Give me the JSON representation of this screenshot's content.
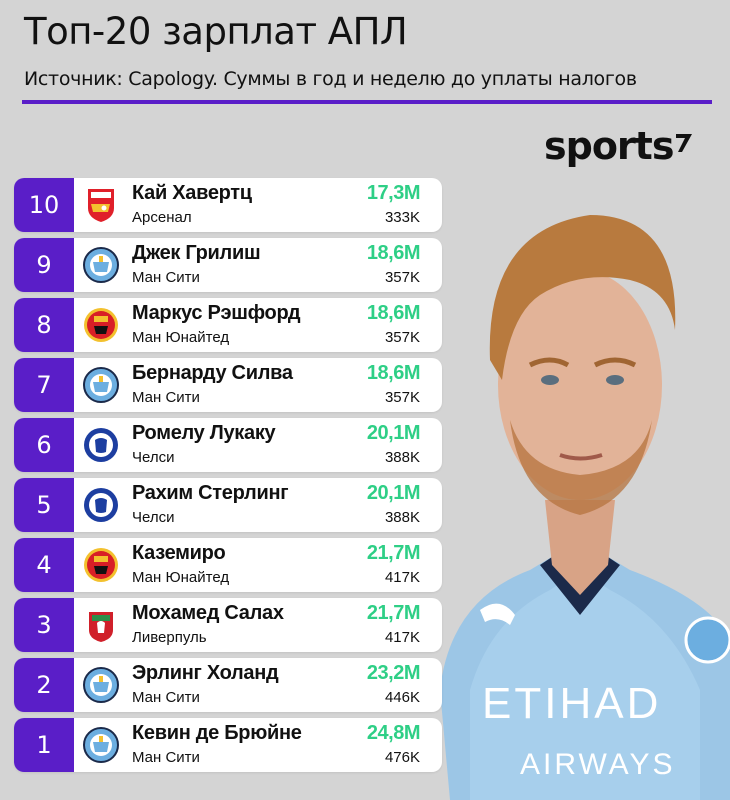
{
  "header": {
    "title": "Топ-20 зарплат АПЛ",
    "subtitle": "Источник: Capology. Суммы в год и неделю до уплаты налогов",
    "brand": "sports"
  },
  "colors": {
    "accent": "#5a1ec8",
    "salary_green": "#2ecf86",
    "background": "#d4d4d4"
  },
  "rows": [
    {
      "rank": "10",
      "name": "Кай Хавертц",
      "club": "Арсенал",
      "year": "17,3M",
      "week": "333K",
      "crest": "arsenal-crest-icon"
    },
    {
      "rank": "9",
      "name": "Джек Грилиш",
      "club": "Ман Сити",
      "year": "18,6M",
      "week": "357K",
      "crest": "man-city-crest-icon"
    },
    {
      "rank": "8",
      "name": "Маркус Рэшфорд",
      "club": "Ман Юнайтед",
      "year": "18,6M",
      "week": "357K",
      "crest": "man-united-crest-icon"
    },
    {
      "rank": "7",
      "name": "Бернарду Силва",
      "club": "Ман Сити",
      "year": "18,6M",
      "week": "357K",
      "crest": "man-city-crest-icon"
    },
    {
      "rank": "6",
      "name": "Ромелу Лукаку",
      "club": "Челси",
      "year": "20,1M",
      "week": "388K",
      "crest": "chelsea-crest-icon"
    },
    {
      "rank": "5",
      "name": "Рахим Стерлинг",
      "club": "Челси",
      "year": "20,1M",
      "week": "388K",
      "crest": "chelsea-crest-icon"
    },
    {
      "rank": "4",
      "name": "Каземиро",
      "club": "Ман Юнайтед",
      "year": "21,7M",
      "week": "417K",
      "crest": "man-united-crest-icon"
    },
    {
      "rank": "3",
      "name": "Мохамед Салах",
      "club": "Ливерпуль",
      "year": "21,7M",
      "week": "417K",
      "crest": "liverpool-crest-icon"
    },
    {
      "rank": "2",
      "name": "Эрлинг Холанд",
      "club": "Ман Сити",
      "year": "23,2M",
      "week": "446K",
      "crest": "man-city-crest-icon"
    },
    {
      "rank": "1",
      "name": "Кевин де Брюйне",
      "club": "Ман Сити",
      "year": "24,8M",
      "week": "476K",
      "crest": "man-city-crest-icon"
    }
  ],
  "photo": {
    "shirt_sponsor_line1": "ETIHAD",
    "shirt_sponsor_line2": "AIRWAYS"
  }
}
